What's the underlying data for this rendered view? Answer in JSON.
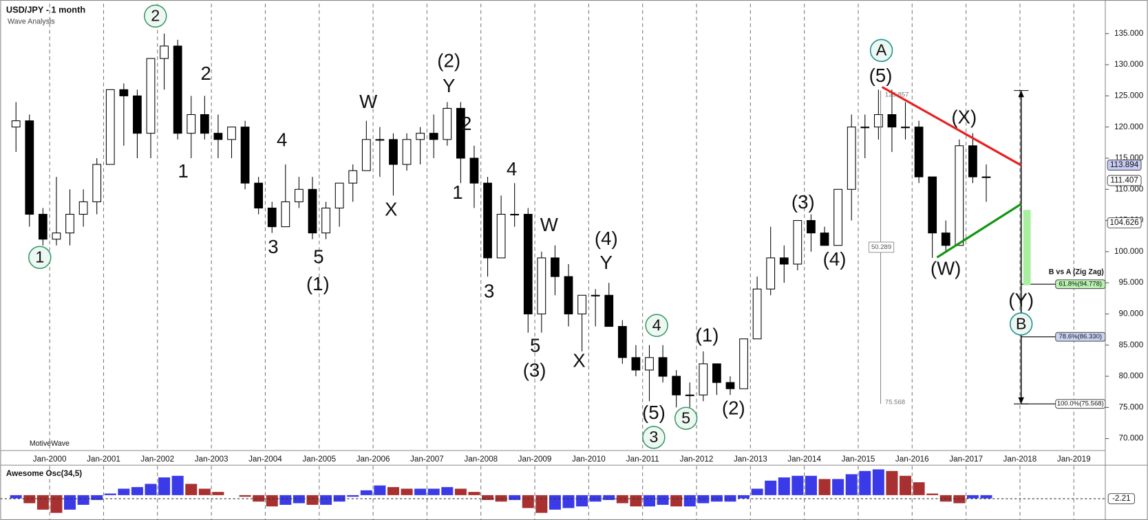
{
  "chart_data": [
    {
      "type": "candlestick",
      "title": "USD/JPY - 1 month",
      "subtitle": "Wave Analysis",
      "watermark": "MotiveWave",
      "x": [
        "1999-04",
        "1999-07",
        "1999-10",
        "2000-01",
        "2000-04",
        "2000-07",
        "2000-10",
        "2001-01",
        "2001-04",
        "2001-07",
        "2001-10",
        "2002-01",
        "2002-04",
        "2002-07",
        "2002-10",
        "2003-01",
        "2003-04",
        "2003-07",
        "2003-10",
        "2004-01",
        "2004-04",
        "2004-07",
        "2004-10",
        "2005-01",
        "2005-04",
        "2005-07",
        "2005-10",
        "2006-01",
        "2006-04",
        "2006-07",
        "2006-10",
        "2007-01",
        "2007-04",
        "2007-07",
        "2007-10",
        "2008-01",
        "2008-04",
        "2008-07",
        "2008-10",
        "2009-01",
        "2009-04",
        "2009-07",
        "2009-10",
        "2010-01",
        "2010-04",
        "2010-07",
        "2010-10",
        "2011-01",
        "2011-04",
        "2011-07",
        "2011-10",
        "2012-01",
        "2012-04",
        "2012-07",
        "2012-10",
        "2013-01",
        "2013-04",
        "2013-07",
        "2013-10",
        "2014-01",
        "2014-04",
        "2014-07",
        "2014-10",
        "2015-01",
        "2015-04",
        "2015-07",
        "2015-10",
        "2016-01",
        "2016-04",
        "2016-07",
        "2016-10",
        "2017-01",
        "2017-04"
      ],
      "open": [
        120,
        121,
        106,
        102,
        103,
        106,
        108,
        114,
        126,
        125,
        119,
        131,
        133,
        119,
        122,
        119,
        118,
        120,
        111,
        107,
        104,
        108,
        110,
        103,
        107,
        111,
        113,
        118,
        118,
        114,
        118,
        119,
        118,
        123,
        115,
        111,
        99,
        106,
        106,
        90,
        99,
        96,
        90,
        93,
        93,
        88,
        83,
        81,
        83,
        80,
        77,
        77,
        82,
        79,
        78,
        86,
        94,
        99,
        98,
        105,
        103,
        101,
        110,
        120,
        120,
        122,
        120,
        120,
        112,
        103,
        101,
        117,
        112
      ],
      "high": [
        124,
        122,
        107,
        112,
        110,
        110,
        115,
        126,
        127,
        126,
        131,
        135,
        134,
        125,
        125,
        122,
        120,
        121,
        112,
        108,
        114,
        112,
        112,
        108,
        111,
        114,
        121,
        120,
        119,
        119,
        120,
        122,
        124,
        124,
        117,
        112,
        109,
        111,
        107,
        100,
        101,
        98,
        93,
        94,
        95,
        89,
        85,
        85,
        85,
        81,
        79,
        84,
        82,
        80,
        86,
        96,
        104,
        101,
        105,
        106,
        104,
        110,
        122,
        122,
        126,
        126,
        124,
        121,
        112,
        105,
        118,
        119,
        114
      ],
      "low": [
        116,
        104,
        101,
        101,
        101,
        104,
        106,
        114,
        117,
        115,
        115,
        126,
        118,
        115,
        118,
        115,
        115,
        110,
        106,
        103,
        104,
        107,
        102,
        102,
        104,
        108,
        113,
        112,
        109,
        113,
        114,
        115,
        117,
        111,
        107,
        96,
        99,
        104,
        87,
        87,
        93,
        88,
        84,
        88,
        88,
        82,
        80,
        76,
        79,
        75,
        75,
        76,
        77,
        77,
        78,
        86,
        93,
        95,
        97,
        100,
        101,
        101,
        105,
        115,
        118,
        116,
        118,
        111,
        99,
        100,
        101,
        111,
        108
      ],
      "close": [
        121,
        106,
        102,
        103,
        106,
        108,
        114,
        126,
        125,
        119,
        131,
        133,
        119,
        122,
        119,
        118,
        120,
        111,
        107,
        104,
        108,
        110,
        103,
        107,
        111,
        113,
        118,
        118,
        114,
        118,
        119,
        118,
        123,
        115,
        111,
        99,
        106,
        106,
        90,
        99,
        96,
        90,
        93,
        93,
        88,
        83,
        81,
        83,
        80,
        77,
        77,
        82,
        79,
        78,
        86,
        94,
        99,
        98,
        105,
        103,
        101,
        110,
        120,
        120,
        122,
        120,
        120,
        112,
        103,
        101,
        117,
        112,
        112
      ],
      "up_color": "#ffffff",
      "down_color": "#000000",
      "xlim": [
        "1999-02",
        "2019-08"
      ],
      "xticks": [
        "Jan-2000",
        "Jan-2001",
        "Jan-2002",
        "Jan-2003",
        "Jan-2004",
        "Jan-2005",
        "Jan-2006",
        "Jan-2007",
        "Jan-2008",
        "Jan-2009",
        "Jan-2010",
        "Jan-2011",
        "Jan-2012",
        "Jan-2013",
        "Jan-2014",
        "Jan-2015",
        "Jan-2016",
        "Jan-2017",
        "Jan-2018",
        "Jan-2019"
      ],
      "ylim": [
        68.2,
        139.8
      ],
      "yticks": [
        {
          "value": 70,
          "label": "70.000"
        },
        {
          "value": 75,
          "label": "75.000"
        },
        {
          "value": 80,
          "label": "80.000"
        },
        {
          "value": 85,
          "label": "85.000"
        },
        {
          "value": 90,
          "label": "90.000"
        },
        {
          "value": 95,
          "label": "95.000"
        },
        {
          "value": 100,
          "label": "100.000"
        },
        {
          "value": 105,
          "label": "105.000"
        },
        {
          "value": 110,
          "label": "110.000"
        },
        {
          "value": 115,
          "label": "115.000"
        },
        {
          "value": 120,
          "label": "120.000"
        },
        {
          "value": 125,
          "label": "125.000"
        },
        {
          "value": 130,
          "label": "130.000"
        },
        {
          "value": 135,
          "label": "135.000"
        }
      ],
      "price_tags": [
        113.894,
        111.407,
        104.626
      ],
      "measure": {
        "top": 125.857,
        "range": 50.289,
        "bottom": 75.568
      },
      "fib": {
        "title": "B vs A (Zig Zag)",
        "levels": [
          {
            "label": "61.8%(94.778)",
            "value": 94.778,
            "color": "#b8f0b0"
          },
          {
            "label": "78.6%(86.330)",
            "value": 86.33,
            "color": "#c8d4f4"
          },
          {
            "label": "100.0%(75.568)",
            "value": 75.568,
            "color": "#ffffff"
          }
        ]
      },
      "annotations": [
        {
          "color": "#3a9a6a",
          "circled": true,
          "labels": [
            "1",
            "2",
            "3",
            "4",
            "5"
          ]
        },
        {
          "color": "#1f8f8f",
          "circled": true,
          "labels": [
            "A",
            "B"
          ]
        },
        {
          "color": "#1a1aff",
          "circled": false,
          "labels": [
            "2",
            "1",
            "4",
            "3",
            "5",
            "W",
            "X",
            "Y",
            "2",
            "1",
            "4",
            "3",
            "5",
            "W",
            "Y",
            "X"
          ]
        },
        {
          "color": "#7b1f7b",
          "circled": false,
          "labels": [
            "(1)",
            "(2)",
            "(3)",
            "(4)",
            "(5)",
            "(1)",
            "(2)",
            "(3)",
            "(4)",
            "(5)",
            "(X)",
            "(W)",
            "(Y)"
          ]
        }
      ]
    },
    {
      "type": "bar",
      "title": "Awesome Osc(34,5)",
      "values": [
        -2,
        -5,
        -9,
        -11,
        -9,
        -6,
        -3,
        1,
        4,
        5,
        7,
        11,
        12,
        7,
        4,
        2,
        0,
        -1,
        -4,
        -7,
        -6,
        -5,
        -6,
        -6,
        -4,
        -1,
        3,
        6,
        5,
        4,
        4,
        4,
        5,
        4,
        2,
        -3,
        -4,
        -3,
        -8,
        -11,
        -9,
        -8,
        -7,
        -4,
        -3,
        -5,
        -7,
        -7,
        -6,
        -7,
        -7,
        -5,
        -4,
        -4,
        -2,
        4,
        9,
        11,
        12,
        12,
        10,
        10,
        13,
        15,
        16,
        15,
        12,
        8,
        1,
        -4,
        -5,
        -2,
        -2
      ],
      "up_color": "#3a3ae8",
      "down_color": "#a83030",
      "ylim": [
        -12.7,
        16.8
      ],
      "last_value": -2.21
    }
  ]
}
